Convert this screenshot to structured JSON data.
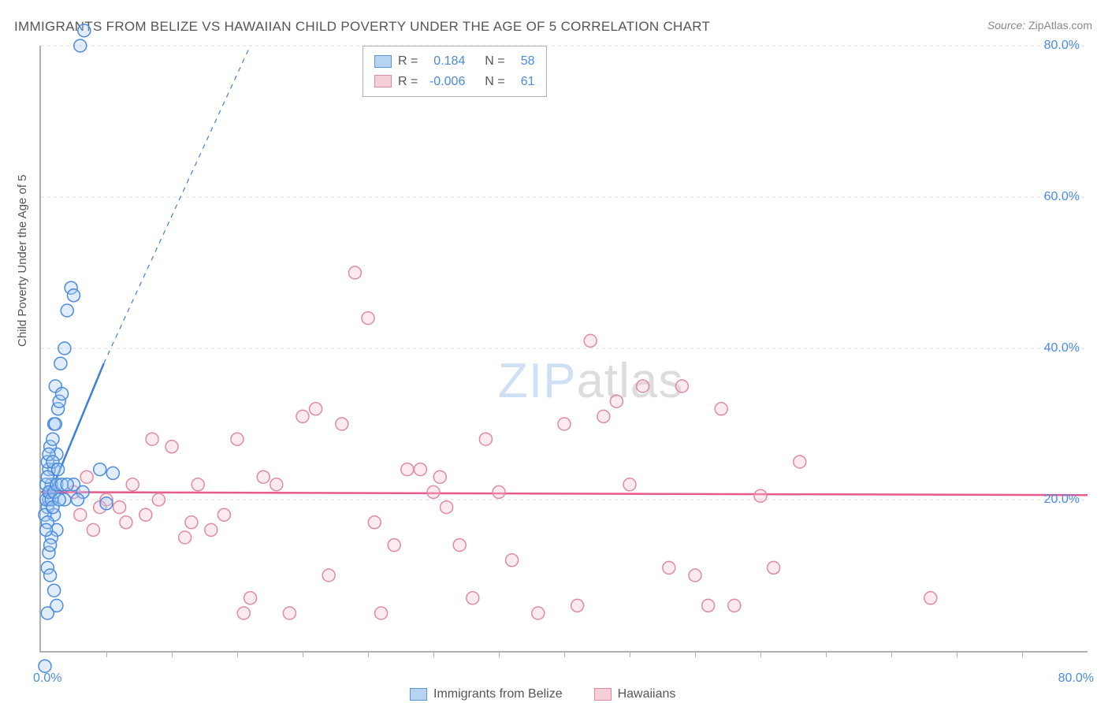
{
  "title": "IMMIGRANTS FROM BELIZE VS HAWAIIAN CHILD POVERTY UNDER THE AGE OF 5 CORRELATION CHART",
  "source_label": "Source:",
  "source_value": "ZipAtlas.com",
  "y_axis_title": "Child Poverty Under the Age of 5",
  "watermark": {
    "part1": "ZIP",
    "part2": "atlas"
  },
  "chart": {
    "type": "scatter",
    "xlim": [
      0,
      80
    ],
    "ylim": [
      0,
      80
    ],
    "x_ticks": [
      0,
      80
    ],
    "x_tick_labels": [
      "0.0%",
      "80.0%"
    ],
    "y_ticks": [
      20,
      40,
      60,
      80
    ],
    "y_tick_labels": [
      "20.0%",
      "40.0%",
      "60.0%",
      "80.0%"
    ],
    "grid_color": "#d8d8d8",
    "axis_color": "#b0b0b0",
    "background_color": "#ffffff",
    "marker_radius": 8,
    "marker_stroke_width": 1.5,
    "marker_fill_opacity": 0.35,
    "x_minor_tick_step": 5,
    "series": {
      "blue": {
        "label": "Immigrants from Belize",
        "marker_fill": "#a9cbf0",
        "marker_stroke": "#4a8adf",
        "line_color": "#3f7fd6",
        "line_width": 2.5,
        "line_dash_beyond": [
          6,
          6
        ],
        "R": "0.184",
        "N": "58",
        "regression_solid": {
          "x1": 0.5,
          "y1": 20,
          "x2": 4.8,
          "y2": 38
        },
        "regression_dashed": {
          "x1": 4.8,
          "y1": 38,
          "x2": 16,
          "y2": 80
        },
        "points": [
          [
            0.5,
            19
          ],
          [
            0.6,
            20
          ],
          [
            0.7,
            21
          ],
          [
            0.8,
            22
          ],
          [
            1.0,
            24
          ],
          [
            1.2,
            26
          ],
          [
            1.0,
            30
          ],
          [
            1.3,
            32
          ],
          [
            1.1,
            35
          ],
          [
            1.5,
            38
          ],
          [
            1.8,
            40
          ],
          [
            2.0,
            45
          ],
          [
            2.3,
            48
          ],
          [
            2.5,
            47
          ],
          [
            3.0,
            80
          ],
          [
            3.3,
            82
          ],
          [
            1.0,
            18
          ],
          [
            1.2,
            16
          ],
          [
            0.8,
            15
          ],
          [
            0.6,
            13
          ],
          [
            0.5,
            11
          ],
          [
            0.7,
            10
          ],
          [
            1.0,
            8
          ],
          [
            1.2,
            6
          ],
          [
            0.5,
            5
          ],
          [
            0.3,
            18
          ],
          [
            0.4,
            20
          ],
          [
            0.6,
            24
          ],
          [
            1.8,
            20
          ],
          [
            2.5,
            22
          ],
          [
            3.2,
            21
          ],
          [
            4.5,
            24
          ],
          [
            5.0,
            19.5
          ],
          [
            5.5,
            23.5
          ],
          [
            0.5,
            25
          ],
          [
            0.7,
            27
          ],
          [
            0.9,
            28
          ],
          [
            1.1,
            30
          ],
          [
            1.4,
            33
          ],
          [
            1.6,
            34
          ],
          [
            0.4,
            22
          ],
          [
            0.5,
            23
          ],
          [
            0.6,
            21
          ],
          [
            0.8,
            20
          ],
          [
            0.9,
            19
          ],
          [
            0.3,
            -2
          ],
          [
            1.0,
            21
          ],
          [
            1.2,
            22
          ],
          [
            1.4,
            20
          ],
          [
            1.6,
            22
          ],
          [
            0.5,
            17
          ],
          [
            0.7,
            14
          ],
          [
            0.4,
            16
          ],
          [
            0.6,
            26
          ],
          [
            0.9,
            25
          ],
          [
            1.3,
            24
          ],
          [
            2.0,
            22
          ],
          [
            2.8,
            20
          ]
        ]
      },
      "pink": {
        "label": "Hawaiians",
        "marker_fill": "#f4c7d3",
        "marker_stroke": "#e08aa0",
        "line_color": "#e85a8a",
        "line_width": 2.5,
        "R": "-0.006",
        "N": "61",
        "regression_solid": {
          "x1": 0,
          "y1": 21,
          "x2": 80,
          "y2": 20.6
        },
        "points": [
          [
            3,
            18
          ],
          [
            4,
            16
          ],
          [
            5,
            20
          ],
          [
            6,
            19
          ],
          [
            7,
            22
          ],
          [
            8,
            18
          ],
          [
            9,
            20
          ],
          [
            10,
            27
          ],
          [
            11,
            15
          ],
          [
            12,
            22
          ],
          [
            13,
            16
          ],
          [
            14,
            18
          ],
          [
            15,
            28
          ],
          [
            16,
            7
          ],
          [
            17,
            23
          ],
          [
            18,
            22
          ],
          [
            20,
            31
          ],
          [
            21,
            32
          ],
          [
            22,
            10
          ],
          [
            23,
            30
          ],
          [
            24,
            50
          ],
          [
            25,
            44
          ],
          [
            26,
            5
          ],
          [
            27,
            14
          ],
          [
            28,
            24
          ],
          [
            29,
            24
          ],
          [
            30,
            21
          ],
          [
            31,
            19
          ],
          [
            32,
            14
          ],
          [
            33,
            7
          ],
          [
            34,
            28
          ],
          [
            35,
            21
          ],
          [
            36,
            12
          ],
          [
            38,
            5
          ],
          [
            40,
            30
          ],
          [
            41,
            6
          ],
          [
            42,
            41
          ],
          [
            43,
            31
          ],
          [
            44,
            33
          ],
          [
            45,
            22
          ],
          [
            46,
            35
          ],
          [
            48,
            11
          ],
          [
            49,
            35
          ],
          [
            50,
            10
          ],
          [
            51,
            6
          ],
          [
            52,
            32
          ],
          [
            53,
            6
          ],
          [
            55,
            20.5
          ],
          [
            56,
            11
          ],
          [
            58,
            25
          ],
          [
            68,
            7
          ],
          [
            2.5,
            21
          ],
          [
            3.5,
            23
          ],
          [
            4.5,
            19
          ],
          [
            6.5,
            17
          ],
          [
            8.5,
            28
          ],
          [
            11.5,
            17
          ],
          [
            15.5,
            5
          ],
          [
            19,
            5
          ],
          [
            25.5,
            17
          ],
          [
            30.5,
            23
          ]
        ]
      }
    }
  },
  "stat_legend_labels": {
    "R": "R =",
    "N": "N ="
  },
  "colors": {
    "text": "#555555",
    "label_blue": "#4a8adf"
  }
}
